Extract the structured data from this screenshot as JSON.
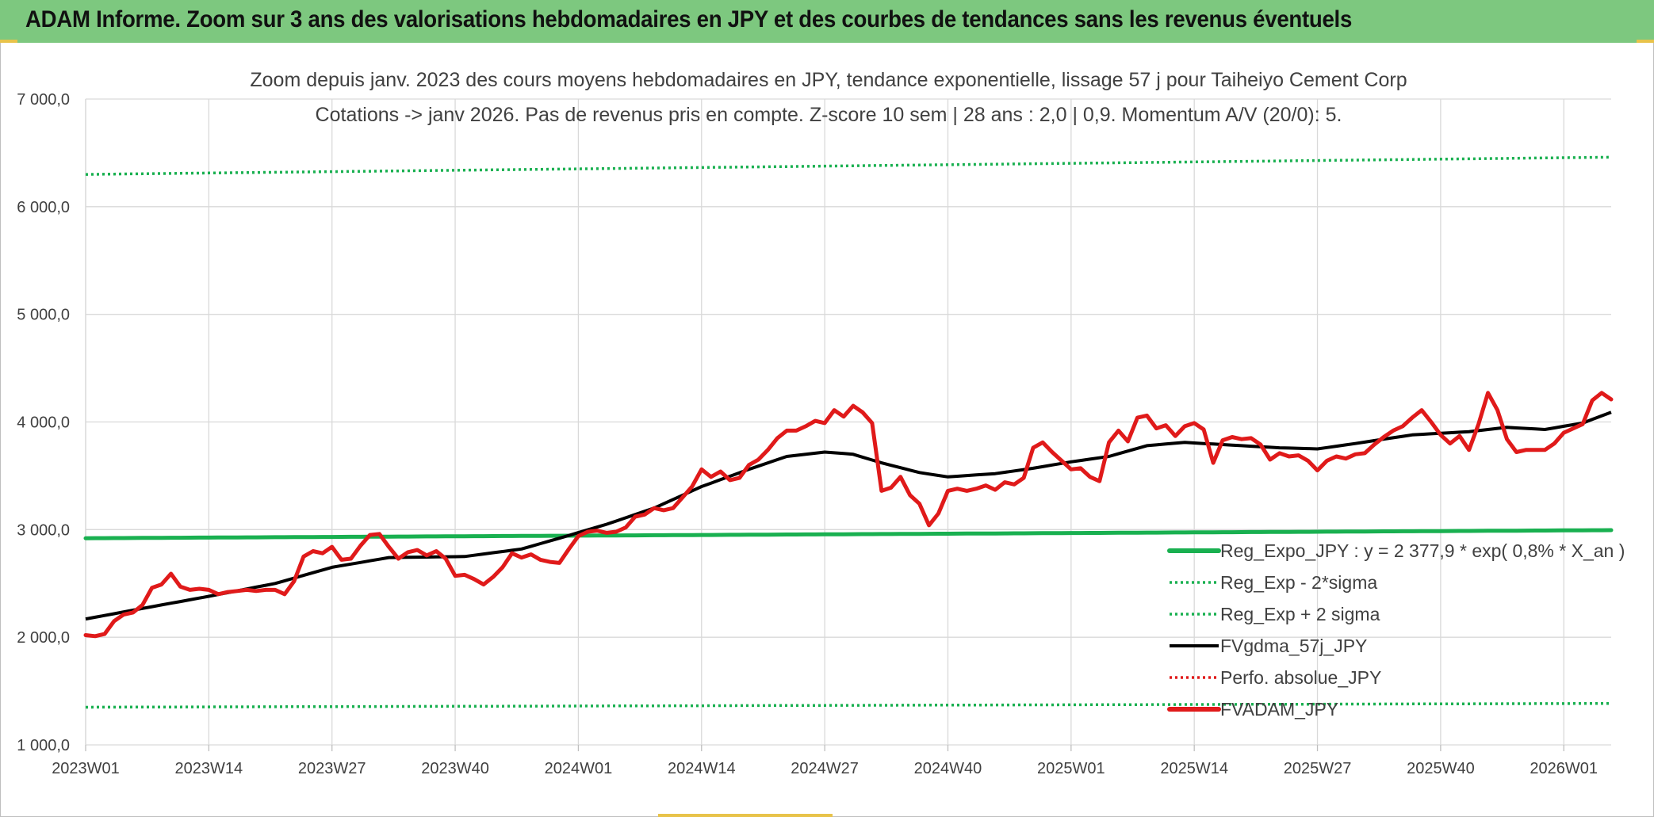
{
  "header": {
    "title": "ADAM Informe. Zoom sur 3 ans des valorisations hebdomadaires en JPY et des courbes de tendances sans les revenus éventuels"
  },
  "chart_data": {
    "type": "line",
    "title": "Zoom depuis janv. 2023 des cours moyens hebdomadaires en JPY, tendance exponentielle, lissage 57 j pour Taiheiyo Cement Corp",
    "subtitle": "Cotations -> janv 2026. Pas de revenus pris en compte. Z-score 10 sem | 28 ans : 2,0 | 0,9. Momentum A/V (20/0): 5.",
    "xlabel": "",
    "ylabel": "",
    "ylim": [
      1000,
      7000
    ],
    "yticks": [
      1000,
      2000,
      3000,
      4000,
      5000,
      6000,
      7000
    ],
    "ytick_labels": [
      "1 000,0",
      "2 000,0",
      "3 000,0",
      "4 000,0",
      "5 000,0",
      "6 000,0",
      "7 000,0"
    ],
    "x_count": 162,
    "xticks": [
      {
        "index": 0,
        "label": "2023W01"
      },
      {
        "index": 13,
        "label": "2023W14"
      },
      {
        "index": 26,
        "label": "2023W27"
      },
      {
        "index": 39,
        "label": "2023W40"
      },
      {
        "index": 52,
        "label": "2024W01"
      },
      {
        "index": 65,
        "label": "2024W14"
      },
      {
        "index": 78,
        "label": "2024W27"
      },
      {
        "index": 91,
        "label": "2024W40"
      },
      {
        "index": 104,
        "label": "2025W01"
      },
      {
        "index": 117,
        "label": "2025W14"
      },
      {
        "index": 130,
        "label": "2025W27"
      },
      {
        "index": 143,
        "label": "2025W40"
      },
      {
        "index": 156,
        "label": "2026W01"
      }
    ],
    "grid": true,
    "legend_position": "bottom-right",
    "series": [
      {
        "name": "Reg_Expo_JPY : y = 2 377,9 * exp( 0,8% *  X_an )",
        "color": "#19b050",
        "style": "solid-thick",
        "start": 2920,
        "end": 2995
      },
      {
        "name": "Reg_Exp - 2*sigma",
        "color": "#19b050",
        "style": "dotted",
        "start": 1350,
        "end": 1385
      },
      {
        "name": "Reg_Exp + 2 sigma",
        "color": "#19b050",
        "style": "dotted",
        "start": 6300,
        "end": 6460
      },
      {
        "name": "FVgdma_57j_JPY",
        "color": "#000000",
        "style": "solid",
        "keypoints": [
          [
            0,
            2170
          ],
          [
            8,
            2300
          ],
          [
            13,
            2380
          ],
          [
            20,
            2500
          ],
          [
            26,
            2650
          ],
          [
            32,
            2740
          ],
          [
            40,
            2750
          ],
          [
            46,
            2820
          ],
          [
            50,
            2920
          ],
          [
            55,
            3050
          ],
          [
            60,
            3200
          ],
          [
            65,
            3400
          ],
          [
            70,
            3560
          ],
          [
            74,
            3680
          ],
          [
            78,
            3720
          ],
          [
            81,
            3700
          ],
          [
            84,
            3620
          ],
          [
            88,
            3530
          ],
          [
            91,
            3490
          ],
          [
            96,
            3520
          ],
          [
            100,
            3570
          ],
          [
            104,
            3630
          ],
          [
            108,
            3680
          ],
          [
            112,
            3780
          ],
          [
            116,
            3810
          ],
          [
            120,
            3790
          ],
          [
            126,
            3760
          ],
          [
            130,
            3750
          ],
          [
            134,
            3800
          ],
          [
            140,
            3880
          ],
          [
            146,
            3910
          ],
          [
            150,
            3950
          ],
          [
            154,
            3930
          ],
          [
            158,
            3990
          ],
          [
            161,
            4090
          ]
        ]
      },
      {
        "name": "Perfo. absolue_JPY",
        "color": "#e01a1a",
        "style": "dotted",
        "values": []
      },
      {
        "name": "FVADAM_JPY",
        "color": "#e01a1a",
        "style": "solid-thick",
        "keypoints": [
          [
            0,
            2020
          ],
          [
            1,
            2010
          ],
          [
            2,
            2030
          ],
          [
            3,
            2150
          ],
          [
            4,
            2210
          ],
          [
            5,
            2230
          ],
          [
            6,
            2300
          ],
          [
            7,
            2460
          ],
          [
            8,
            2490
          ],
          [
            9,
            2590
          ],
          [
            10,
            2470
          ],
          [
            11,
            2440
          ],
          [
            12,
            2450
          ],
          [
            13,
            2440
          ],
          [
            14,
            2400
          ],
          [
            15,
            2420
          ],
          [
            16,
            2430
          ],
          [
            17,
            2440
          ],
          [
            18,
            2430
          ],
          [
            19,
            2440
          ],
          [
            20,
            2440
          ],
          [
            21,
            2400
          ],
          [
            22,
            2520
          ],
          [
            23,
            2750
          ],
          [
            24,
            2800
          ],
          [
            25,
            2780
          ],
          [
            26,
            2840
          ],
          [
            27,
            2720
          ],
          [
            28,
            2730
          ],
          [
            29,
            2850
          ],
          [
            30,
            2950
          ],
          [
            31,
            2960
          ],
          [
            32,
            2840
          ],
          [
            33,
            2730
          ],
          [
            34,
            2790
          ],
          [
            35,
            2810
          ],
          [
            36,
            2760
          ],
          [
            37,
            2800
          ],
          [
            38,
            2730
          ],
          [
            39,
            2570
          ],
          [
            40,
            2580
          ],
          [
            41,
            2540
          ],
          [
            42,
            2490
          ],
          [
            43,
            2560
          ],
          [
            44,
            2650
          ],
          [
            45,
            2780
          ],
          [
            46,
            2740
          ],
          [
            47,
            2770
          ],
          [
            48,
            2720
          ],
          [
            49,
            2700
          ],
          [
            50,
            2690
          ],
          [
            51,
            2820
          ],
          [
            52,
            2940
          ],
          [
            53,
            2980
          ],
          [
            54,
            2990
          ],
          [
            55,
            2970
          ],
          [
            56,
            2980
          ],
          [
            57,
            3020
          ],
          [
            58,
            3120
          ],
          [
            59,
            3140
          ],
          [
            60,
            3200
          ],
          [
            61,
            3180
          ],
          [
            62,
            3200
          ],
          [
            63,
            3300
          ],
          [
            64,
            3400
          ],
          [
            65,
            3560
          ],
          [
            66,
            3490
          ],
          [
            67,
            3540
          ],
          [
            68,
            3460
          ],
          [
            69,
            3480
          ],
          [
            70,
            3600
          ],
          [
            71,
            3650
          ],
          [
            72,
            3740
          ],
          [
            73,
            3850
          ],
          [
            74,
            3920
          ],
          [
            75,
            3920
          ],
          [
            76,
            3960
          ],
          [
            77,
            4010
          ],
          [
            78,
            3990
          ],
          [
            79,
            4110
          ],
          [
            80,
            4050
          ],
          [
            81,
            4150
          ],
          [
            82,
            4090
          ],
          [
            83,
            3990
          ],
          [
            84,
            3360
          ],
          [
            85,
            3390
          ],
          [
            86,
            3490
          ],
          [
            87,
            3320
          ],
          [
            88,
            3240
          ],
          [
            89,
            3040
          ],
          [
            90,
            3150
          ],
          [
            91,
            3360
          ],
          [
            92,
            3380
          ],
          [
            93,
            3360
          ],
          [
            94,
            3380
          ],
          [
            95,
            3410
          ],
          [
            96,
            3370
          ],
          [
            97,
            3440
          ],
          [
            98,
            3420
          ],
          [
            99,
            3480
          ],
          [
            100,
            3760
          ],
          [
            101,
            3810
          ],
          [
            102,
            3720
          ],
          [
            103,
            3640
          ],
          [
            104,
            3560
          ],
          [
            105,
            3570
          ],
          [
            106,
            3490
          ],
          [
            107,
            3450
          ],
          [
            108,
            3810
          ],
          [
            109,
            3920
          ],
          [
            110,
            3820
          ],
          [
            111,
            4040
          ],
          [
            112,
            4060
          ],
          [
            113,
            3940
          ],
          [
            114,
            3970
          ],
          [
            115,
            3870
          ],
          [
            116,
            3960
          ],
          [
            117,
            3990
          ],
          [
            118,
            3930
          ],
          [
            119,
            3620
          ],
          [
            120,
            3830
          ],
          [
            121,
            3860
          ],
          [
            122,
            3840
          ],
          [
            123,
            3850
          ],
          [
            124,
            3790
          ],
          [
            125,
            3650
          ],
          [
            126,
            3710
          ],
          [
            127,
            3680
          ],
          [
            128,
            3690
          ],
          [
            129,
            3640
          ],
          [
            130,
            3550
          ],
          [
            131,
            3640
          ],
          [
            132,
            3680
          ],
          [
            133,
            3660
          ],
          [
            134,
            3700
          ],
          [
            135,
            3710
          ],
          [
            136,
            3790
          ],
          [
            137,
            3860
          ],
          [
            138,
            3920
          ],
          [
            139,
            3960
          ],
          [
            140,
            4040
          ],
          [
            141,
            4110
          ],
          [
            142,
            4000
          ],
          [
            143,
            3880
          ],
          [
            144,
            3800
          ],
          [
            145,
            3870
          ],
          [
            146,
            3740
          ],
          [
            147,
            3980
          ],
          [
            148,
            4270
          ],
          [
            149,
            4110
          ],
          [
            150,
            3840
          ],
          [
            151,
            3720
          ],
          [
            152,
            3740
          ],
          [
            153,
            3740
          ],
          [
            154,
            3740
          ],
          [
            155,
            3800
          ],
          [
            156,
            3900
          ],
          [
            157,
            3940
          ],
          [
            158,
            3980
          ],
          [
            159,
            4200
          ],
          [
            160,
            4270
          ],
          [
            161,
            4210
          ]
        ]
      }
    ]
  }
}
